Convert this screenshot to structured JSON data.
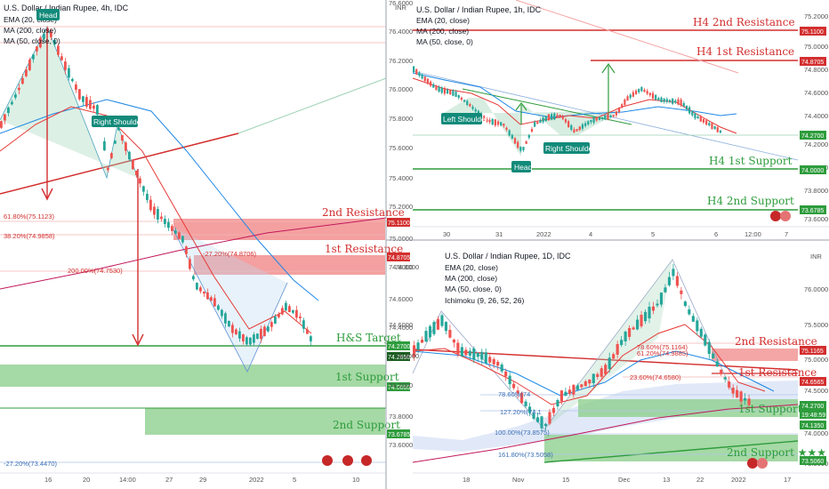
{
  "charts": [
    {
      "id": "p1",
      "title": "U.S. Dollar / Indian Rupee, 4h, IDC",
      "indicators": [
        "EMA (20, close)",
        "MA (200, close)",
        "MA (50, close, 0)"
      ],
      "pattern_labels": [
        "Head",
        "Right Shoulder"
      ],
      "levels": [
        {
          "name": "2nd Resistance",
          "value": "75.1100",
          "color": "red"
        },
        {
          "name": "1st Resistance",
          "value": "74.8705",
          "color": "red"
        },
        {
          "name": "H&S Target",
          "value": "74.2700",
          "color": "green"
        },
        {
          "name": "1st Support",
          "value": "74.0000",
          "color": "green"
        },
        {
          "name": "2nd Support",
          "value": "73.6785",
          "color": "green"
        }
      ],
      "price_tags": [
        "75.1100",
        "74.8705",
        "74.2700",
        "74.2650",
        "74.0000",
        "73.6785"
      ],
      "fib_labels": [
        "61.80%(75.1123)",
        "38.20%(74.9858)",
        "-27.20%(74.8706)",
        "200.00%(74.7530)",
        "-27.20%(73.4470)"
      ],
      "y_ticks": [
        "75.0000",
        "74.8000",
        "74.6000",
        "74.4000",
        "73.8000",
        "73.6000"
      ],
      "x_ticks": [
        "16",
        "20",
        "14:00",
        "27",
        "29",
        "2022",
        "5",
        "10"
      ]
    },
    {
      "id": "p2",
      "title": "U.S. Dollar / Indian Rupee, 1h, IDC",
      "indicators": [
        "EMA (20, close)",
        "MA (200, close)",
        "MA (50, close, 0)"
      ],
      "pattern_labels": [
        "Left Shoulder",
        "Head",
        "Right Shoulder"
      ],
      "levels": [
        {
          "name": "H4 2nd Resistance",
          "value": "75.1100",
          "color": "red"
        },
        {
          "name": "H4 1st Resistance",
          "value": "74.8705",
          "color": "red"
        },
        {
          "name": "H4 1st Support",
          "value": "74.0000",
          "color": "green"
        },
        {
          "name": "H4 2nd Support",
          "value": "73.6785",
          "color": "green"
        }
      ],
      "price_tags": [
        "75.1100",
        "74.8705",
        "74.2700",
        "74.0000",
        "73.6785"
      ],
      "left_ticks": [
        "76.6000",
        "76.4000",
        "76.2000",
        "76.0000",
        "75.8000",
        "75.6000",
        "75.4000",
        "75.2000",
        "75.0000"
      ],
      "left_unit": "INR",
      "right_ticks": [
        "75.2000",
        "75.0000",
        "74.8000",
        "74.6000",
        "74.4000",
        "74.2000",
        "74.0000",
        "73.8000",
        "73.6000"
      ],
      "x_ticks": [
        "30",
        "31",
        "2022",
        "4",
        "5",
        "6",
        "12:00",
        "7"
      ]
    },
    {
      "id": "p3",
      "title": "U.S. Dollar / Indian Rupee, 1D, IDC",
      "indicators": [
        "EMA (20, close)",
        "MA (200, close)",
        "MA (50, close, 0)",
        "Ichimoku (9, 26, 52, 26)"
      ],
      "levels": [
        {
          "name": "2nd Resistance",
          "value": "75.1165",
          "color": "red"
        },
        {
          "name": "1st Resistance",
          "value": "74.6565",
          "color": "red"
        },
        {
          "name": "1st Support",
          "value": "74.1350",
          "color": "green"
        },
        {
          "name": "2nd Support ★★★",
          "value": "73.5060",
          "color": "green"
        }
      ],
      "price_tags": [
        "75.1165",
        "74.6565",
        "74.2700",
        "19:48:59",
        "74.1350",
        "73.5060"
      ],
      "fib_labels": [
        "78.60%(75.1164)",
        "61.20%(74.9885)",
        "23.60%(74.6580)",
        "78.60%(74",
        "127.20%(74.1",
        "100.00%(73.8575)",
        "161.80%(73.5058)"
      ],
      "right_ticks": [
        "76.0000",
        "75.5000",
        "75.0000",
        "74.5000",
        "74.0000",
        "73.5000"
      ],
      "right_unit": "INR",
      "left_ticks": [
        "74.8000",
        "74.6000",
        "74.4000",
        "74.2000",
        "74.0000",
        "73.8000",
        "73.6000"
      ],
      "x_ticks": [
        "18",
        "Nov",
        "15",
        "Dec",
        "13",
        "22",
        "2022",
        "17"
      ]
    }
  ],
  "colors": {
    "red": "#d32f2f",
    "green": "#2e9c3c",
    "up": "#26a69a",
    "down": "#ef5350",
    "ema": "#e53935",
    "ma200": "#c2185b",
    "ma50": "#1e88e5"
  },
  "footer_icons": [
    "us-flag-icon",
    "in-flag-icon"
  ]
}
